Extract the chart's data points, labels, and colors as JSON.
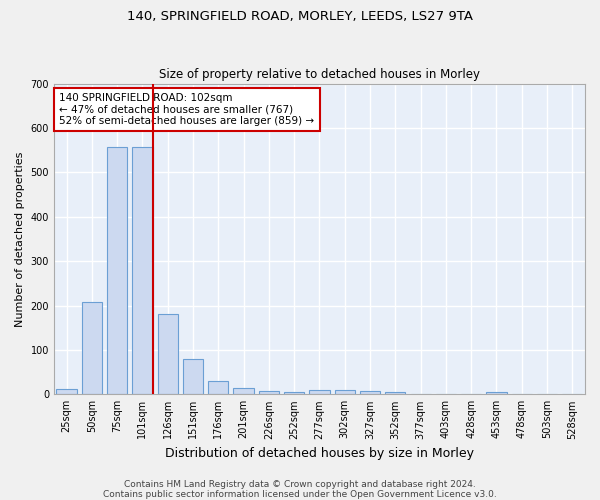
{
  "title": "140, SPRINGFIELD ROAD, MORLEY, LEEDS, LS27 9TA",
  "subtitle": "Size of property relative to detached houses in Morley",
  "xlabel": "Distribution of detached houses by size in Morley",
  "ylabel": "Number of detached properties",
  "categories": [
    "25sqm",
    "50sqm",
    "75sqm",
    "101sqm",
    "126sqm",
    "151sqm",
    "176sqm",
    "201sqm",
    "226sqm",
    "252sqm",
    "277sqm",
    "302sqm",
    "327sqm",
    "352sqm",
    "377sqm",
    "403sqm",
    "428sqm",
    "453sqm",
    "478sqm",
    "503sqm",
    "528sqm"
  ],
  "values": [
    12,
    207,
    557,
    557,
    180,
    80,
    30,
    14,
    8,
    6,
    10,
    10,
    8,
    5,
    0,
    0,
    0,
    6,
    0,
    0,
    0
  ],
  "bar_color": "#ccd9f0",
  "bar_edge_color": "#6b9fd4",
  "red_line_index": 3,
  "annotation_text": "140 SPRINGFIELD ROAD: 102sqm\n← 47% of detached houses are smaller (767)\n52% of semi-detached houses are larger (859) →",
  "annotation_box_color": "white",
  "annotation_box_edge_color": "#cc0000",
  "red_line_color": "#cc0000",
  "ylim": [
    0,
    700
  ],
  "yticks": [
    0,
    100,
    200,
    300,
    400,
    500,
    600,
    700
  ],
  "background_color": "#e8eff9",
  "grid_color": "#ffffff",
  "footer": "Contains HM Land Registry data © Crown copyright and database right 2024.\nContains public sector information licensed under the Open Government Licence v3.0.",
  "title_fontsize": 9.5,
  "subtitle_fontsize": 8.5,
  "xlabel_fontsize": 9,
  "ylabel_fontsize": 8,
  "tick_fontsize": 7,
  "footer_fontsize": 6.5,
  "annotation_fontsize": 7.5
}
